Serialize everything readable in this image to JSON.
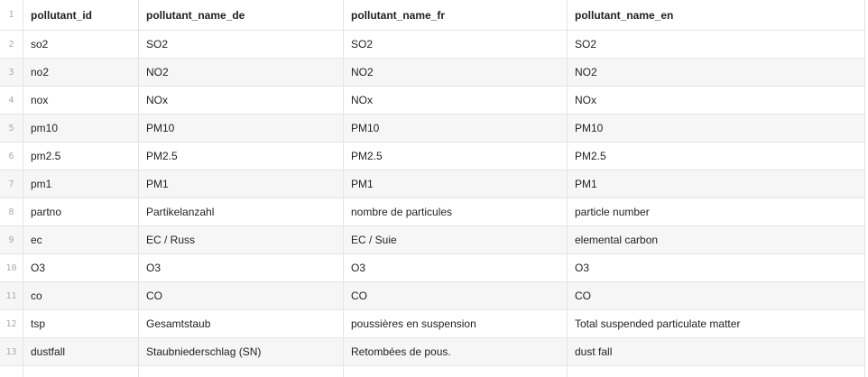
{
  "table": {
    "header_row_number": "1",
    "columns": [
      "pollutant_id",
      "pollutant_name_de",
      "pollutant_name_fr",
      "pollutant_name_en"
    ],
    "rows": [
      {
        "n": "2",
        "cells": [
          "so2",
          "SO2",
          "SO2",
          "SO2"
        ]
      },
      {
        "n": "3",
        "cells": [
          "no2",
          "NO2",
          "NO2",
          "NO2"
        ]
      },
      {
        "n": "4",
        "cells": [
          "nox",
          "NOx",
          "NOx",
          "NOx"
        ]
      },
      {
        "n": "5",
        "cells": [
          "pm10",
          "PM10",
          "PM10",
          "PM10"
        ]
      },
      {
        "n": "6",
        "cells": [
          "pm2.5",
          "PM2.5",
          "PM2.5",
          "PM2.5"
        ]
      },
      {
        "n": "7",
        "cells": [
          "pm1",
          "PM1",
          "PM1",
          "PM1"
        ]
      },
      {
        "n": "8",
        "cells": [
          "partno",
          "Partikelanzahl",
          "nombre de particules",
          "particle number"
        ]
      },
      {
        "n": "9",
        "cells": [
          "ec",
          "EC / Russ",
          "EC / Suie",
          "elemental carbon"
        ]
      },
      {
        "n": "10",
        "cells": [
          "O3",
          "O3",
          "O3",
          "O3"
        ]
      },
      {
        "n": "11",
        "cells": [
          "co",
          "CO",
          "CO",
          "CO"
        ]
      },
      {
        "n": "12",
        "cells": [
          "tsp",
          "Gesamtstaub",
          "poussières en suspension",
          "Total suspended particulate matter"
        ]
      },
      {
        "n": "13",
        "cells": [
          "dustfall",
          "Staubniederschlag (SN)",
          "Retombées de pous.",
          "dust fall"
        ]
      }
    ]
  }
}
